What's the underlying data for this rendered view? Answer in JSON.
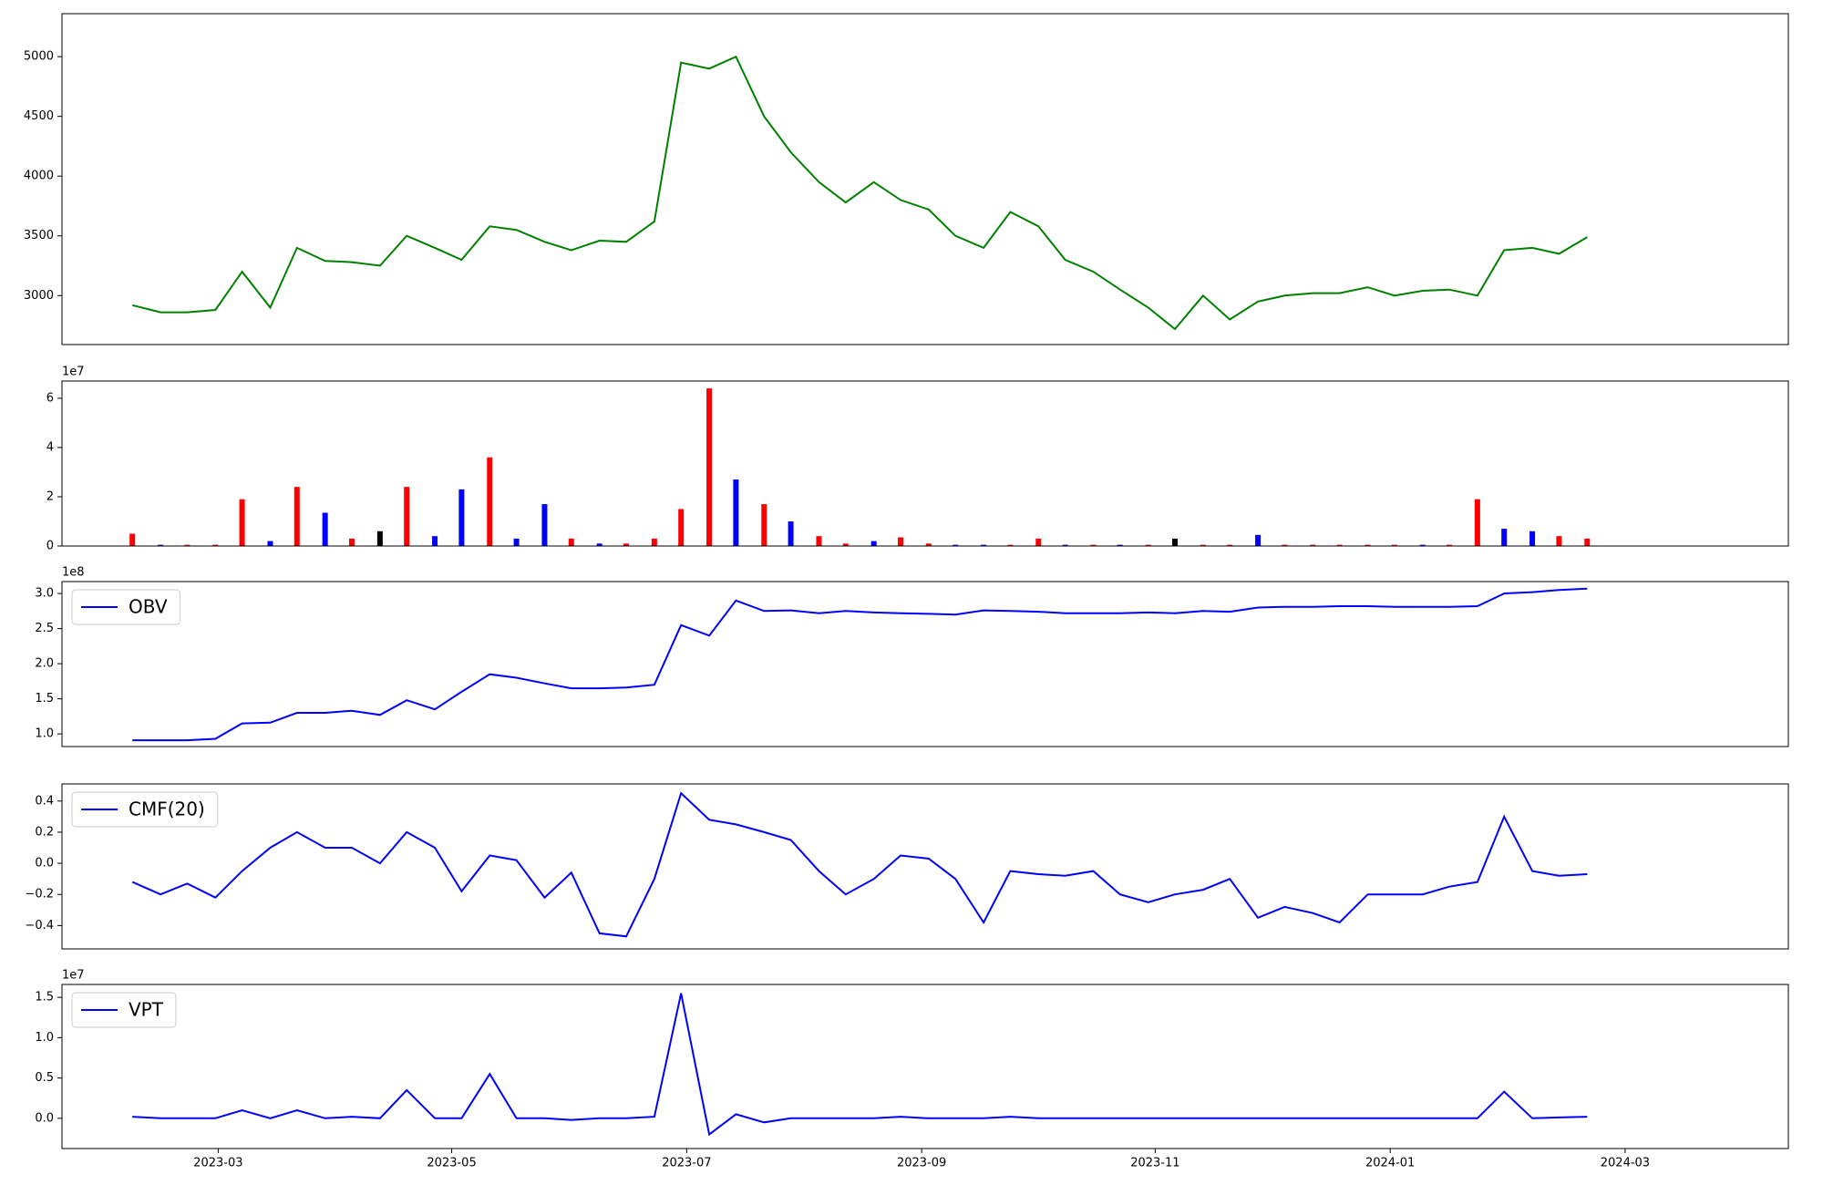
{
  "chart_data": [
    {
      "type": "line",
      "color": "#008000",
      "x": [
        2023.106,
        2023.126,
        2023.145,
        2023.165,
        2023.184,
        2023.204,
        2023.223,
        2023.243,
        2023.262,
        2023.282,
        2023.301,
        2023.321,
        2023.34,
        2023.36,
        2023.379,
        2023.399,
        2023.418,
        2023.438,
        2023.457,
        2023.477,
        2023.496,
        2023.516,
        2023.535,
        2023.555,
        2023.574,
        2023.594,
        2023.613,
        2023.633,
        2023.652,
        2023.672,
        2023.691,
        2023.711,
        2023.73,
        2023.75,
        2023.769,
        2023.789,
        2023.808,
        2023.828,
        2023.847,
        2023.867,
        2023.886,
        2023.906,
        2023.925,
        2023.945,
        2023.964,
        2023.984,
        2024.003,
        2024.023,
        2024.042,
        2024.062,
        2024.081,
        2024.101,
        2024.12,
        2024.14
      ],
      "values": [
        2920,
        2860,
        2860,
        2880,
        3200,
        2900,
        3400,
        3290,
        3280,
        3250,
        3500,
        3400,
        3300,
        3580,
        3550,
        3450,
        3380,
        3460,
        3450,
        3620,
        4950,
        4900,
        5000,
        4500,
        4200,
        3950,
        3780,
        3950,
        3800,
        3720,
        3500,
        3400,
        3700,
        3580,
        3300,
        3200,
        3050,
        2900,
        2720,
        3000,
        2800,
        2950,
        3000,
        3020,
        3020,
        3070,
        3000,
        3040,
        3050,
        3000,
        3380,
        3400,
        3350,
        3490
      ],
      "ylim": [
        2590,
        5360
      ],
      "yticks": [
        3000,
        3500,
        4000,
        4500,
        5000
      ]
    },
    {
      "type": "bar",
      "offset_label": "1e7",
      "values": [
        0.5,
        0.05,
        0.05,
        0.05,
        1.9,
        0.2,
        2.4,
        1.35,
        0.3,
        0.6,
        2.4,
        0.4,
        2.3,
        3.6,
        0.3,
        1.7,
        0.3,
        0.1,
        0.1,
        0.3,
        1.5,
        6.4,
        2.7,
        1.7,
        1.0,
        0.4,
        0.1,
        0.2,
        0.35,
        0.1,
        0.05,
        0.05,
        0.05,
        0.3,
        0.05,
        0.05,
        0.05,
        0.05,
        0.3,
        0.05,
        0.05,
        0.45,
        0.05,
        0.05,
        0.05,
        0.05,
        0.05,
        0.05,
        0.05,
        1.9,
        0.7,
        0.6,
        0.4,
        0.3
      ],
      "colors": [
        "red",
        "blue",
        "red",
        "red",
        "red",
        "blue",
        "red",
        "blue",
        "red",
        "black",
        "red",
        "blue",
        "blue",
        "red",
        "blue",
        "blue",
        "red",
        "blue",
        "red",
        "red",
        "red",
        "red",
        "blue",
        "red",
        "blue",
        "red",
        "red",
        "blue",
        "red",
        "red",
        "blue",
        "blue",
        "red",
        "red",
        "blue",
        "red",
        "blue",
        "red",
        "black",
        "red",
        "red",
        "blue",
        "red",
        "red",
        "red",
        "red",
        "red",
        "blue",
        "red",
        "red",
        "blue",
        "blue",
        "red",
        "red"
      ],
      "ylim": [
        0,
        6.7
      ],
      "yticks": [
        0,
        2,
        4,
        6
      ]
    },
    {
      "type": "line",
      "offset_label": "1e8",
      "series": [
        {
          "name": "OBV",
          "color": "blue",
          "values": [
            0.91,
            0.91,
            0.91,
            0.93,
            1.15,
            1.16,
            1.3,
            1.3,
            1.33,
            1.27,
            1.48,
            1.35,
            1.6,
            1.85,
            1.8,
            1.72,
            1.65,
            1.65,
            1.66,
            1.7,
            2.55,
            2.4,
            2.9,
            2.75,
            2.76,
            2.72,
            2.75,
            2.73,
            2.72,
            2.71,
            2.7,
            2.76,
            2.75,
            2.74,
            2.72,
            2.72,
            2.72,
            2.73,
            2.72,
            2.75,
            2.74,
            2.8,
            2.81,
            2.81,
            2.82,
            2.82,
            2.81,
            2.81,
            2.81,
            2.82,
            3.0,
            3.02,
            3.05,
            3.07
          ]
        }
      ],
      "ylim": [
        0.82,
        3.17
      ],
      "yticks": [
        {
          "value": 1,
          "label": "1.0"
        },
        1.5,
        {
          "value": 2,
          "label": "2.0"
        },
        2.5,
        {
          "value": 3,
          "label": "3.0"
        }
      ]
    },
    {
      "type": "line",
      "series": [
        {
          "name": "CMF(20)",
          "color": "blue",
          "values": [
            -0.12,
            -0.2,
            -0.13,
            -0.22,
            -0.05,
            0.1,
            0.2,
            0.1,
            0.1,
            0.0,
            0.2,
            0.1,
            -0.18,
            0.05,
            0.02,
            -0.22,
            -0.06,
            -0.45,
            -0.47,
            -0.1,
            0.45,
            0.28,
            0.25,
            0.2,
            0.15,
            -0.05,
            -0.2,
            -0.1,
            0.05,
            0.03,
            -0.1,
            -0.38,
            -0.05,
            -0.07,
            -0.08,
            -0.05,
            -0.2,
            -0.25,
            -0.2,
            -0.17,
            -0.1,
            -0.35,
            -0.28,
            -0.32,
            -0.38,
            -0.2,
            -0.2,
            -0.2,
            -0.15,
            -0.12,
            0.3,
            -0.05,
            -0.08,
            -0.07
          ]
        }
      ],
      "ylim": [
        -0.55,
        0.51
      ],
      "yticks": [
        {
          "value": -0.4,
          "label": "−0.4"
        },
        {
          "value": -0.2,
          "label": "−0.2"
        },
        {
          "value": 0,
          "label": "0.0"
        },
        0.2,
        0.4
      ]
    },
    {
      "type": "line",
      "offset_label": "1e7",
      "series": [
        {
          "name": "VPT",
          "color": "blue",
          "values": [
            0.02,
            0,
            0,
            0,
            0.1,
            0,
            0.1,
            0,
            0.02,
            0,
            0.35,
            0,
            0,
            0.55,
            0,
            0,
            -0.02,
            0,
            0,
            0.02,
            1.55,
            -0.2,
            0.05,
            -0.05,
            0,
            0,
            0,
            0,
            0.02,
            0,
            0,
            0,
            0.02,
            0,
            0,
            0,
            0,
            0,
            0,
            0,
            0,
            0,
            0,
            0,
            0,
            0,
            0,
            0,
            0,
            0,
            0.33,
            0,
            0.01,
            0.02
          ]
        }
      ],
      "ylim": [
        -0.375,
        1.66
      ],
      "yticks": [
        {
          "value": 0,
          "label": "0.0"
        },
        0.5,
        {
          "value": 1,
          "label": "1.0"
        },
        1.5
      ],
      "xlim": [
        2023.056,
        2024.283
      ],
      "xticks": [
        {
          "value": 2023.167,
          "label": "2023-03"
        },
        {
          "value": 2023.333,
          "label": "2023-05"
        },
        {
          "value": 2023.5,
          "label": "2023-07"
        },
        {
          "value": 2023.667,
          "label": "2023-09"
        },
        {
          "value": 2023.833,
          "label": "2023-11"
        },
        {
          "value": 2024.0,
          "label": "2024-01"
        },
        {
          "value": 2024.167,
          "label": "2024-03"
        }
      ]
    }
  ]
}
